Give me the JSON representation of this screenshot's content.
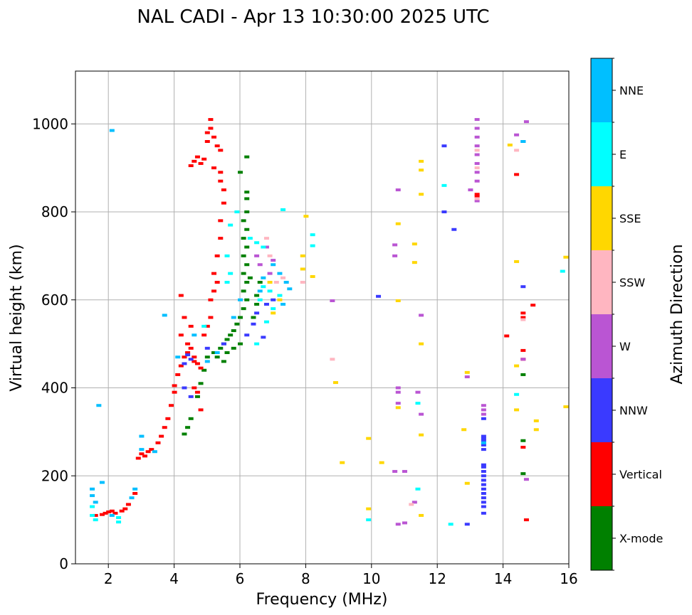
{
  "chart_data": {
    "type": "scatter",
    "title": "NAL CADI - Apr 13 10:30:00 2025 UTC",
    "xlabel": "Frequency (MHz)",
    "ylabel": "Virtual height (km)",
    "xlim": [
      1,
      16
    ],
    "ylim": [
      0,
      1120
    ],
    "x_ticks": [
      2,
      4,
      6,
      8,
      10,
      12,
      14,
      16
    ],
    "y_ticks": [
      0,
      200,
      400,
      600,
      800,
      1000
    ],
    "grid": true,
    "colorbar": {
      "title": "Azimuth Direction",
      "categories": [
        {
          "label": "X-mode",
          "color": "#008000"
        },
        {
          "label": "Vertical",
          "color": "#ff0000"
        },
        {
          "label": "NNW",
          "color": "#3a3aff"
        },
        {
          "label": "W",
          "color": "#ba55d3"
        },
        {
          "label": "SSW",
          "color": "#ffb6c1"
        },
        {
          "label": "SSE",
          "color": "#ffd700"
        },
        {
          "label": "E",
          "color": "#00ffff"
        },
        {
          "label": "NNE",
          "color": "#00bfff"
        }
      ]
    },
    "series": [
      {
        "name": "X-mode",
        "points": [
          [
            5.0,
            470
          ],
          [
            5.2,
            480
          ],
          [
            5.4,
            490
          ],
          [
            5.5,
            500
          ],
          [
            5.6,
            510
          ],
          [
            5.7,
            520
          ],
          [
            5.8,
            530
          ],
          [
            5.9,
            545
          ],
          [
            6.0,
            560
          ],
          [
            6.1,
            580
          ],
          [
            6.2,
            600
          ],
          [
            6.1,
            620
          ],
          [
            6.2,
            640
          ],
          [
            6.1,
            660
          ],
          [
            6.2,
            680
          ],
          [
            6.1,
            700
          ],
          [
            6.2,
            720
          ],
          [
            6.1,
            740
          ],
          [
            6.2,
            760
          ],
          [
            6.1,
            780
          ],
          [
            6.2,
            800
          ],
          [
            6.2,
            830
          ],
          [
            6.2,
            845
          ],
          [
            6.0,
            890
          ],
          [
            6.2,
            925
          ],
          [
            4.9,
            440
          ],
          [
            4.8,
            410
          ],
          [
            4.7,
            380
          ],
          [
            4.5,
            330
          ],
          [
            4.4,
            310
          ],
          [
            4.3,
            295
          ],
          [
            5.3,
            470
          ],
          [
            5.6,
            480
          ],
          [
            5.8,
            490
          ],
          [
            5.5,
            460
          ],
          [
            6.0,
            500
          ],
          [
            6.5,
            610
          ],
          [
            6.6,
            640
          ],
          [
            6.3,
            650
          ],
          [
            6.4,
            560
          ],
          [
            6.5,
            590
          ],
          [
            14.6,
            430
          ],
          [
            14.6,
            205
          ],
          [
            14.6,
            280
          ]
        ]
      },
      {
        "name": "Vertical",
        "points": [
          [
            1.6,
            110
          ],
          [
            1.8,
            112
          ],
          [
            1.9,
            115
          ],
          [
            2.0,
            118
          ],
          [
            2.1,
            120
          ],
          [
            2.2,
            115
          ],
          [
            2.4,
            120
          ],
          [
            2.5,
            125
          ],
          [
            2.6,
            135
          ],
          [
            2.8,
            160
          ],
          [
            2.9,
            240
          ],
          [
            3.0,
            250
          ],
          [
            3.1,
            245
          ],
          [
            3.2,
            255
          ],
          [
            3.3,
            260
          ],
          [
            3.5,
            275
          ],
          [
            3.6,
            290
          ],
          [
            3.7,
            310
          ],
          [
            3.8,
            330
          ],
          [
            3.9,
            360
          ],
          [
            4.0,
            390
          ],
          [
            4.0,
            405
          ],
          [
            4.1,
            430
          ],
          [
            4.2,
            450
          ],
          [
            4.3,
            470
          ],
          [
            4.4,
            480
          ],
          [
            4.5,
            490
          ],
          [
            4.6,
            470
          ],
          [
            4.7,
            455
          ],
          [
            4.8,
            445
          ],
          [
            4.2,
            610
          ],
          [
            4.3,
            560
          ],
          [
            4.2,
            520
          ],
          [
            4.5,
            540
          ],
          [
            4.4,
            500
          ],
          [
            4.6,
            460
          ],
          [
            4.9,
            520
          ],
          [
            5.0,
            540
          ],
          [
            5.1,
            560
          ],
          [
            5.1,
            600
          ],
          [
            5.2,
            620
          ],
          [
            5.3,
            640
          ],
          [
            5.2,
            660
          ],
          [
            5.3,
            700
          ],
          [
            5.4,
            740
          ],
          [
            5.4,
            780
          ],
          [
            5.5,
            820
          ],
          [
            5.5,
            850
          ],
          [
            5.4,
            870
          ],
          [
            5.4,
            890
          ],
          [
            5.2,
            900
          ],
          [
            4.8,
            910
          ],
          [
            4.9,
            920
          ],
          [
            4.6,
            915
          ],
          [
            4.5,
            905
          ],
          [
            4.7,
            925
          ],
          [
            5.0,
            960
          ],
          [
            5.0,
            980
          ],
          [
            5.1,
            990
          ],
          [
            5.1,
            1010
          ],
          [
            5.3,
            950
          ],
          [
            5.4,
            940
          ],
          [
            5.2,
            970
          ],
          [
            13.2,
            840
          ],
          [
            13.2,
            835
          ],
          [
            14.4,
            885
          ],
          [
            14.6,
            570
          ],
          [
            14.6,
            560
          ],
          [
            14.6,
            485
          ],
          [
            14.6,
            465
          ],
          [
            14.9,
            588
          ],
          [
            14.1,
            518
          ],
          [
            14.6,
            265
          ],
          [
            14.7,
            100
          ],
          [
            4.6,
            400
          ],
          [
            4.7,
            390
          ],
          [
            4.8,
            350
          ]
        ]
      },
      {
        "name": "NNW",
        "points": [
          [
            13.4,
            200
          ],
          [
            13.4,
            190
          ],
          [
            13.4,
            180
          ],
          [
            13.4,
            170
          ],
          [
            13.4,
            160
          ],
          [
            13.4,
            150
          ],
          [
            13.4,
            140
          ],
          [
            13.4,
            130
          ],
          [
            13.4,
            115
          ],
          [
            13.4,
            210
          ],
          [
            13.4,
            220
          ],
          [
            13.4,
            290
          ],
          [
            13.4,
            280
          ],
          [
            13.4,
            270
          ],
          [
            13.4,
            260
          ],
          [
            13.4,
            330
          ],
          [
            13.4,
            285
          ],
          [
            13.4,
            225
          ],
          [
            12.9,
            90
          ],
          [
            12.5,
            760
          ],
          [
            12.2,
            800
          ],
          [
            12.2,
            950
          ],
          [
            10.2,
            608
          ],
          [
            14.6,
            630
          ],
          [
            14.6,
            960
          ],
          [
            4.3,
            455
          ],
          [
            4.5,
            465
          ],
          [
            4.4,
            475
          ],
          [
            5.0,
            490
          ],
          [
            5.5,
            500
          ],
          [
            6.2,
            520
          ],
          [
            6.4,
            545
          ],
          [
            6.5,
            570
          ],
          [
            6.8,
            590
          ],
          [
            7.0,
            600
          ],
          [
            6.7,
            515
          ],
          [
            4.3,
            400
          ],
          [
            4.5,
            380
          ]
        ]
      },
      {
        "name": "W",
        "points": [
          [
            13.4,
            360
          ],
          [
            13.4,
            350
          ],
          [
            13.4,
            340
          ],
          [
            13.2,
            970
          ],
          [
            13.2,
            950
          ],
          [
            13.2,
            930
          ],
          [
            13.2,
            910
          ],
          [
            13.2,
            890
          ],
          [
            13.2,
            990
          ],
          [
            13.2,
            1010
          ],
          [
            13.2,
            870
          ],
          [
            13.2,
            825
          ],
          [
            13.0,
            850
          ],
          [
            14.4,
            975
          ],
          [
            14.7,
            1005
          ],
          [
            14.7,
            192
          ],
          [
            14.6,
            465
          ],
          [
            12.9,
            425
          ],
          [
            11.0,
            93
          ],
          [
            10.8,
            90
          ],
          [
            10.7,
            210
          ],
          [
            11.0,
            210
          ],
          [
            10.7,
            725
          ],
          [
            10.7,
            700
          ],
          [
            10.8,
            850
          ],
          [
            11.3,
            140
          ],
          [
            11.5,
            340
          ],
          [
            11.5,
            565
          ],
          [
            11.4,
            390
          ],
          [
            10.8,
            400
          ],
          [
            10.8,
            390
          ],
          [
            10.8,
            365
          ],
          [
            8.8,
            598
          ],
          [
            6.5,
            700
          ],
          [
            6.8,
            720
          ],
          [
            7.0,
            690
          ],
          [
            6.6,
            680
          ],
          [
            6.9,
            660
          ]
        ]
      },
      {
        "name": "SSW",
        "points": [
          [
            13.2,
            830
          ],
          [
            13.2,
            900
          ],
          [
            13.2,
            940
          ],
          [
            14.4,
            940
          ],
          [
            14.6,
            555
          ],
          [
            7.9,
            640
          ],
          [
            7.3,
            650
          ],
          [
            7.1,
            640
          ],
          [
            6.9,
            700
          ],
          [
            6.8,
            740
          ],
          [
            8.8,
            465
          ],
          [
            11.2,
            135
          ]
        ]
      },
      {
        "name": "SSE",
        "points": [
          [
            8.0,
            790
          ],
          [
            7.9,
            700
          ],
          [
            7.9,
            670
          ],
          [
            8.2,
            653
          ],
          [
            10.8,
            773
          ],
          [
            10.8,
            598
          ],
          [
            11.5,
            915
          ],
          [
            11.5,
            895
          ],
          [
            11.5,
            840
          ],
          [
            11.3,
            727
          ],
          [
            11.3,
            685
          ],
          [
            11.5,
            500
          ],
          [
            11.5,
            293
          ],
          [
            11.5,
            110
          ],
          [
            12.9,
            435
          ],
          [
            12.8,
            305
          ],
          [
            12.9,
            183
          ],
          [
            14.2,
            952
          ],
          [
            14.4,
            687
          ],
          [
            14.4,
            450
          ],
          [
            14.4,
            350
          ],
          [
            15.0,
            325
          ],
          [
            15.0,
            305
          ],
          [
            15.9,
            697
          ],
          [
            15.9,
            357
          ],
          [
            9.9,
            285
          ],
          [
            9.9,
            125
          ],
          [
            10.3,
            230
          ],
          [
            8.9,
            412
          ],
          [
            9.1,
            230
          ],
          [
            10.8,
            355
          ],
          [
            6.9,
            640
          ],
          [
            7.2,
            600
          ],
          [
            7.0,
            570
          ]
        ]
      },
      {
        "name": "E",
        "points": [
          [
            8.2,
            748
          ],
          [
            8.2,
            723
          ],
          [
            12.4,
            90
          ],
          [
            12.2,
            860
          ],
          [
            11.4,
            170
          ],
          [
            11.4,
            365
          ],
          [
            14.4,
            385
          ],
          [
            15.8,
            665
          ],
          [
            9.9,
            100
          ],
          [
            6.7,
            630
          ],
          [
            6.9,
            620
          ],
          [
            7.2,
            610
          ],
          [
            7.0,
            580
          ],
          [
            6.6,
            600
          ],
          [
            6.8,
            550
          ],
          [
            6.5,
            500
          ],
          [
            5.6,
            640
          ],
          [
            5.7,
            660
          ],
          [
            5.6,
            700
          ],
          [
            5.7,
            770
          ],
          [
            5.9,
            800
          ],
          [
            7.3,
            805
          ],
          [
            6.3,
            740
          ],
          [
            6.5,
            730
          ],
          [
            6.7,
            720
          ],
          [
            1.5,
            130
          ],
          [
            1.5,
            110
          ],
          [
            1.6,
            100
          ],
          [
            2.3,
            95
          ],
          [
            2.3,
            105
          ],
          [
            4.9,
            540
          ]
        ]
      },
      {
        "name": "NNE",
        "points": [
          [
            1.5,
            170
          ],
          [
            1.5,
            155
          ],
          [
            1.6,
            140
          ],
          [
            1.8,
            185
          ],
          [
            2.1,
            110
          ],
          [
            2.8,
            170
          ],
          [
            2.7,
            150
          ],
          [
            3.0,
            260
          ],
          [
            3.0,
            290
          ],
          [
            3.4,
            255
          ],
          [
            3.7,
            565
          ],
          [
            4.1,
            470
          ],
          [
            4.6,
            520
          ],
          [
            5.0,
            460
          ],
          [
            5.3,
            480
          ],
          [
            5.8,
            560
          ],
          [
            6.0,
            600
          ],
          [
            6.6,
            620
          ],
          [
            6.7,
            650
          ],
          [
            7.0,
            680
          ],
          [
            7.2,
            660
          ],
          [
            7.4,
            640
          ],
          [
            7.5,
            625
          ],
          [
            7.3,
            590
          ],
          [
            13.4,
            275
          ],
          [
            1.7,
            360
          ],
          [
            2.1,
            985
          ],
          [
            14.6,
            960
          ]
        ]
      }
    ]
  }
}
